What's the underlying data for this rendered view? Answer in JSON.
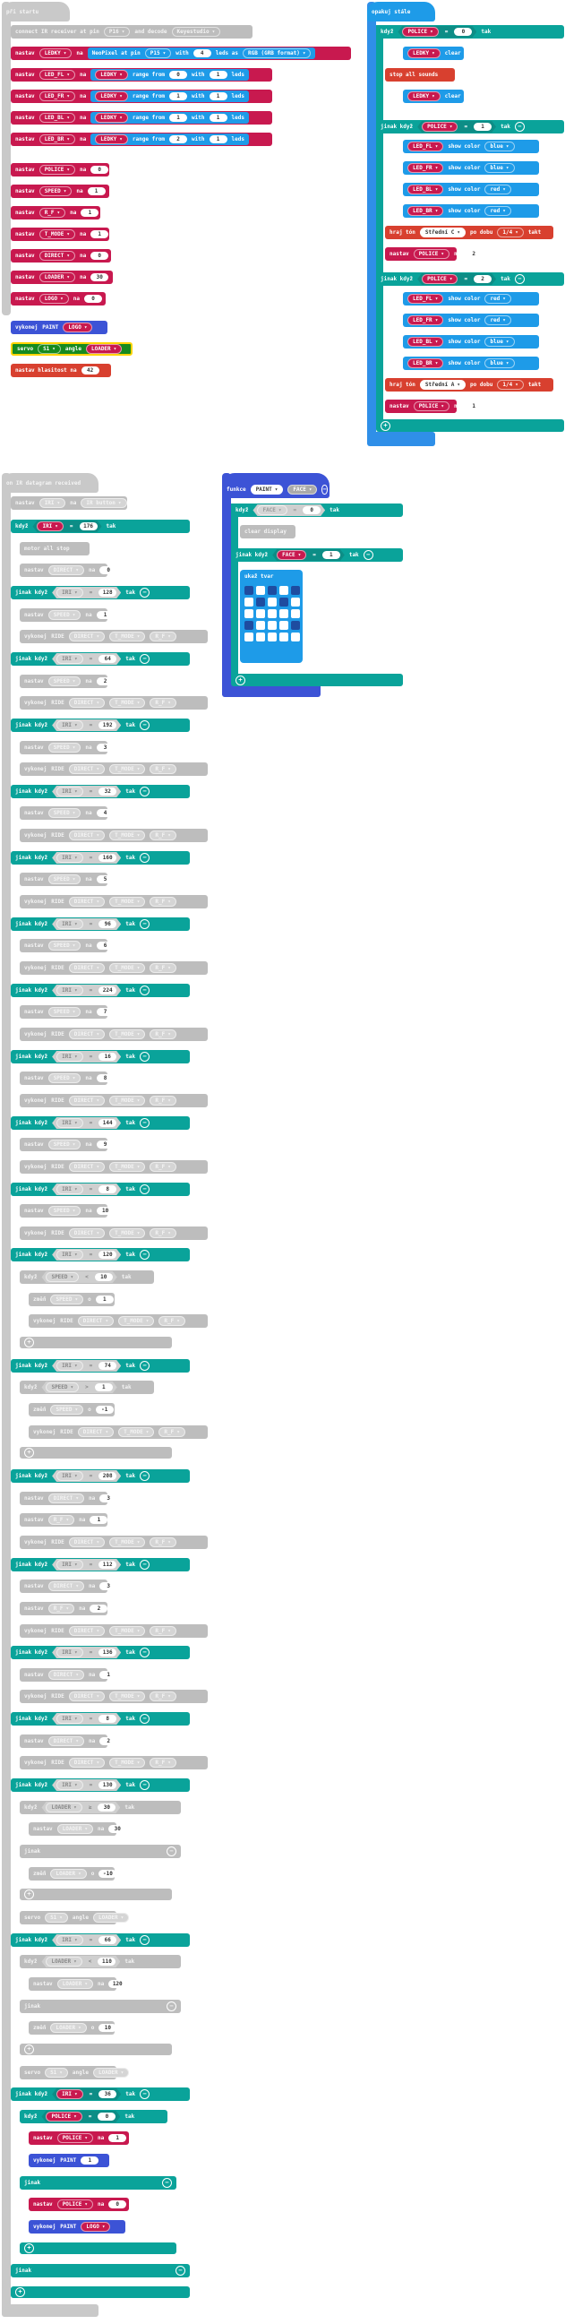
{
  "colors": {
    "loops_hat": "#c9c9c9",
    "variables": "#c8194f",
    "logic": "#0aa39a",
    "functions": "#3c53d6",
    "led": "#2f8fe8",
    "music": "#d8402f",
    "pins": "#168a1f"
  },
  "start": {
    "hat": "při startu",
    "ir_connect": {
      "kw": "connect IR receiver at pin",
      "pin": "P16",
      "mid": "and decode",
      "proto": "Keyestudio"
    },
    "neopixel": {
      "kw": "nastav",
      "var": "LEDKY",
      "to": "na",
      "fn": "NeoPixel at pin",
      "pin": "P15",
      "with": "with",
      "count": "4",
      "leds_as": "leds as",
      "fmt": "RGB (GRB format)"
    },
    "ranges": [
      {
        "var": "LED_FL",
        "src": "LEDKY",
        "from": "0",
        "with": "1"
      },
      {
        "var": "LED_FR",
        "src": "LEDKY",
        "from": "1",
        "with": "1"
      },
      {
        "var": "LED_BL",
        "src": "LEDKY",
        "from": "1",
        "with": "1"
      },
      {
        "var": "LED_BR",
        "src": "LEDKY",
        "from": "2",
        "with": "1"
      }
    ],
    "range_from": "range from",
    "range_with": "with",
    "range_leds": "leds",
    "set_kw": "nastav",
    "set_to": "na",
    "sets": [
      {
        "var": "POLICE",
        "val": "0"
      },
      {
        "var": "SPEED",
        "val": "1"
      },
      {
        "var": "R_F",
        "val": "1"
      },
      {
        "var": "T_MODE",
        "val": "1"
      },
      {
        "var": "DIRECT",
        "val": "0"
      },
      {
        "var": "LOADER",
        "val": "30"
      },
      {
        "var": "LOGO",
        "val": "0"
      }
    ],
    "call": {
      "kw": "vykonej",
      "fn": "PAINT",
      "arg": "LOGO"
    },
    "servo": {
      "kw": "servo",
      "pin": "S1",
      "angle": "angle",
      "var": "LOADER"
    },
    "volume": {
      "kw": "nastav hlasitost na",
      "val": "42"
    }
  },
  "forever": {
    "hat": "opakuj stále",
    "if_kw": "když",
    "then": "tak",
    "else_if": "jinak když",
    "eq": "=",
    "if1": {
      "var": "POLICE",
      "val": "0"
    },
    "if1_body": [
      {
        "var": "LEDKY",
        "act": "clear"
      }
    ],
    "stop_sounds": "stop all sounds",
    "clear2": {
      "var": "LEDKY",
      "act": "clear"
    },
    "elif1": {
      "var": "POLICE",
      "val": "1"
    },
    "show_color": "show color",
    "leds1": [
      {
        "var": "LED_FL",
        "c": "blue"
      },
      {
        "var": "LED_FR",
        "c": "blue"
      },
      {
        "var": "LED_BL",
        "c": "red"
      },
      {
        "var": "LED_BR",
        "c": "red"
      }
    ],
    "tone1": {
      "kw": "hraj tón",
      "note": "Střední C",
      "dur_kw": "po dobu",
      "dur": "1/4",
      "unit": "takt"
    },
    "set1": {
      "var": "POLICE",
      "val": "2"
    },
    "elif2": {
      "var": "POLICE",
      "val": "2"
    },
    "leds2": [
      {
        "var": "LED_FL",
        "c": "red"
      },
      {
        "var": "LED_FR",
        "c": "red"
      },
      {
        "var": "LED_BL",
        "c": "blue"
      },
      {
        "var": "LED_BR",
        "c": "blue"
      }
    ],
    "tone2": {
      "kw": "hraj tón",
      "note": "Střední A",
      "dur_kw": "po dobu",
      "dur": "1/4",
      "unit": "takt"
    },
    "set2": {
      "var": "POLICE",
      "val": "1"
    }
  },
  "func": {
    "kw": "funkce",
    "name": "PAINT",
    "param": "FACE",
    "if": {
      "var": "FACE",
      "val": "0"
    },
    "clear": "clear display",
    "elif": {
      "var": "FACE",
      "val": "1"
    },
    "show": "ukaž tvar",
    "grid": [
      0,
      1,
      0,
      1,
      0,
      1,
      0,
      1,
      0,
      1,
      1,
      1,
      1,
      1,
      1,
      0,
      1,
      1,
      1,
      0,
      1,
      1,
      1,
      1,
      1
    ]
  },
  "ir": {
    "hat": "on IR datagram received",
    "set_kw": "nastav",
    "to": "na",
    "if_kw": "když",
    "then": "tak",
    "else_if": "jinak když",
    "else_kw": "jinak",
    "call_kw": "vykonej",
    "change_kw": "změň",
    "by": "o",
    "first_set": {
      "var": "IRI",
      "src": "IR button"
    },
    "lines": [
      {
        "t": "if",
        "d": 0,
        "var": "IRI",
        "op": "=",
        "val": "176"
      },
      {
        "t": "text",
        "d": 1,
        "text": "motor  all  stop"
      },
      {
        "t": "set",
        "d": 1,
        "var": "DIRECT",
        "val": "0"
      },
      {
        "t": "elif",
        "d": 0,
        "var": "IRI",
        "op": "=",
        "val": "128"
      },
      {
        "t": "set",
        "d": 1,
        "var": "SPEED",
        "val": "1"
      },
      {
        "t": "call3",
        "d": 1
      },
      {
        "t": "elif",
        "d": 0,
        "var": "IRI",
        "op": "=",
        "val": "64"
      },
      {
        "t": "set",
        "d": 1,
        "var": "SPEED",
        "val": "2"
      },
      {
        "t": "call3",
        "d": 1
      },
      {
        "t": "elif",
        "d": 0,
        "var": "IRI",
        "op": "=",
        "val": "192"
      },
      {
        "t": "set",
        "d": 1,
        "var": "SPEED",
        "val": "3"
      },
      {
        "t": "call3",
        "d": 1
      },
      {
        "t": "elif",
        "d": 0,
        "var": "IRI",
        "op": "=",
        "val": "32"
      },
      {
        "t": "set",
        "d": 1,
        "var": "SPEED",
        "val": "4"
      },
      {
        "t": "call3",
        "d": 1
      },
      {
        "t": "elif",
        "d": 0,
        "var": "IRI",
        "op": "=",
        "val": "160"
      },
      {
        "t": "set",
        "d": 1,
        "var": "SPEED",
        "val": "5"
      },
      {
        "t": "call3",
        "d": 1
      },
      {
        "t": "elif",
        "d": 0,
        "var": "IRI",
        "op": "=",
        "val": "96"
      },
      {
        "t": "set",
        "d": 1,
        "var": "SPEED",
        "val": "6"
      },
      {
        "t": "call3",
        "d": 1
      },
      {
        "t": "elif",
        "d": 0,
        "var": "IRI",
        "op": "=",
        "val": "224"
      },
      {
        "t": "set",
        "d": 1,
        "var": "SPEED",
        "val": "7"
      },
      {
        "t": "call3",
        "d": 1
      },
      {
        "t": "elif",
        "d": 0,
        "var": "IRI",
        "op": "=",
        "val": "16"
      },
      {
        "t": "set",
        "d": 1,
        "var": "SPEED",
        "val": "8"
      },
      {
        "t": "call3",
        "d": 1
      },
      {
        "t": "elif",
        "d": 0,
        "var": "IRI",
        "op": "=",
        "val": "144"
      },
      {
        "t": "set",
        "d": 1,
        "var": "SPEED",
        "val": "9"
      },
      {
        "t": "call3",
        "d": 1
      },
      {
        "t": "elif",
        "d": 0,
        "var": "IRI",
        "op": "=",
        "val": "8"
      },
      {
        "t": "set",
        "d": 1,
        "var": "SPEED",
        "val": "10"
      },
      {
        "t": "call3",
        "d": 1
      },
      {
        "t": "elif",
        "d": 0,
        "var": "IRI",
        "op": "=",
        "val": "120"
      },
      {
        "t": "gif",
        "d": 1,
        "var": "SPEED",
        "op": "<",
        "val": "10"
      },
      {
        "t": "change",
        "d": 2,
        "var": "SPEED",
        "val": "1"
      },
      {
        "t": "call3",
        "d": 2
      },
      {
        "t": "plus",
        "d": 1
      },
      {
        "t": "elif",
        "d": 0,
        "var": "IRI",
        "op": "=",
        "val": "74"
      },
      {
        "t": "gif",
        "d": 1,
        "var": "SPEED",
        "op": ">",
        "val": "1"
      },
      {
        "t": "change",
        "d": 2,
        "var": "SPEED",
        "val": "-1"
      },
      {
        "t": "call3",
        "d": 2
      },
      {
        "t": "plus",
        "d": 1
      },
      {
        "t": "elif",
        "d": 0,
        "var": "IRI",
        "op": "=",
        "val": "208"
      },
      {
        "t": "set",
        "d": 1,
        "var": "DIRECT",
        "val": "3"
      },
      {
        "t": "set",
        "d": 1,
        "var": "R_F",
        "val": "1"
      },
      {
        "t": "call3",
        "d": 1
      },
      {
        "t": "elif",
        "d": 0,
        "var": "IRI",
        "op": "=",
        "val": "112"
      },
      {
        "t": "set",
        "d": 1,
        "var": "DIRECT",
        "val": "3"
      },
      {
        "t": "set",
        "d": 1,
        "var": "R_F",
        "val": "2"
      },
      {
        "t": "call3",
        "d": 1
      },
      {
        "t": "elif",
        "d": 0,
        "var": "IRI",
        "op": "=",
        "val": "136"
      },
      {
        "t": "set",
        "d": 1,
        "var": "DIRECT",
        "val": "1"
      },
      {
        "t": "call3",
        "d": 1
      },
      {
        "t": "elif",
        "d": 0,
        "var": "IRI",
        "op": "=",
        "val": "8"
      },
      {
        "t": "set",
        "d": 1,
        "var": "DIRECT",
        "val": "2"
      },
      {
        "t": "call3",
        "d": 1
      },
      {
        "t": "elif",
        "d": 0,
        "var": "IRI",
        "op": "=",
        "val": "130"
      },
      {
        "t": "gif",
        "d": 1,
        "var": "LOADER",
        "op": "≥",
        "val": "30"
      },
      {
        "t": "set",
        "d": 2,
        "var": "LOADER",
        "val": "30"
      },
      {
        "t": "gelse",
        "d": 1
      },
      {
        "t": "change",
        "d": 2,
        "var": "LOADER",
        "val": "-10"
      },
      {
        "t": "plus",
        "d": 1
      },
      {
        "t": "servo",
        "d": 1,
        "pin": "S1",
        "var": "LOADER"
      },
      {
        "t": "elif",
        "d": 0,
        "var": "IRI",
        "op": "=",
        "val": "66"
      },
      {
        "t": "gif",
        "d": 1,
        "var": "LOADER",
        "op": "<",
        "val": "110"
      },
      {
        "t": "set",
        "d": 2,
        "var": "LOADER",
        "val": "120"
      },
      {
        "t": "gelse",
        "d": 1
      },
      {
        "t": "change",
        "d": 2,
        "var": "LOADER",
        "val": "10"
      },
      {
        "t": "plus",
        "d": 1
      },
      {
        "t": "servo",
        "d": 1,
        "pin": "S1",
        "var": "LOADER"
      },
      {
        "t": "elifA",
        "d": 0,
        "var": "IRI",
        "op": "=",
        "val": "36"
      },
      {
        "t": "ifA",
        "d": 1,
        "var": "POLICE",
        "op": "=",
        "val": "0"
      },
      {
        "t": "setA",
        "d": 2,
        "var": "POLICE",
        "val": "1"
      },
      {
        "t": "callA",
        "d": 2,
        "fn": "PAINT",
        "arg": "1"
      },
      {
        "t": "elseA",
        "d": 1
      },
      {
        "t": "setA",
        "d": 2,
        "var": "POLICE",
        "val": "0"
      },
      {
        "t": "callA2",
        "d": 2,
        "fn": "PAINT",
        "arg": "LOGO"
      },
      {
        "t": "plusA",
        "d": 1
      },
      {
        "t": "elseA",
        "d": 0
      },
      {
        "t": "plusA",
        "d": 0
      }
    ],
    "call3": {
      "fn": "RIDE",
      "a": "DIRECT",
      "b": "T_MODE",
      "c": "R_F"
    },
    "servo_angle": "angle"
  }
}
